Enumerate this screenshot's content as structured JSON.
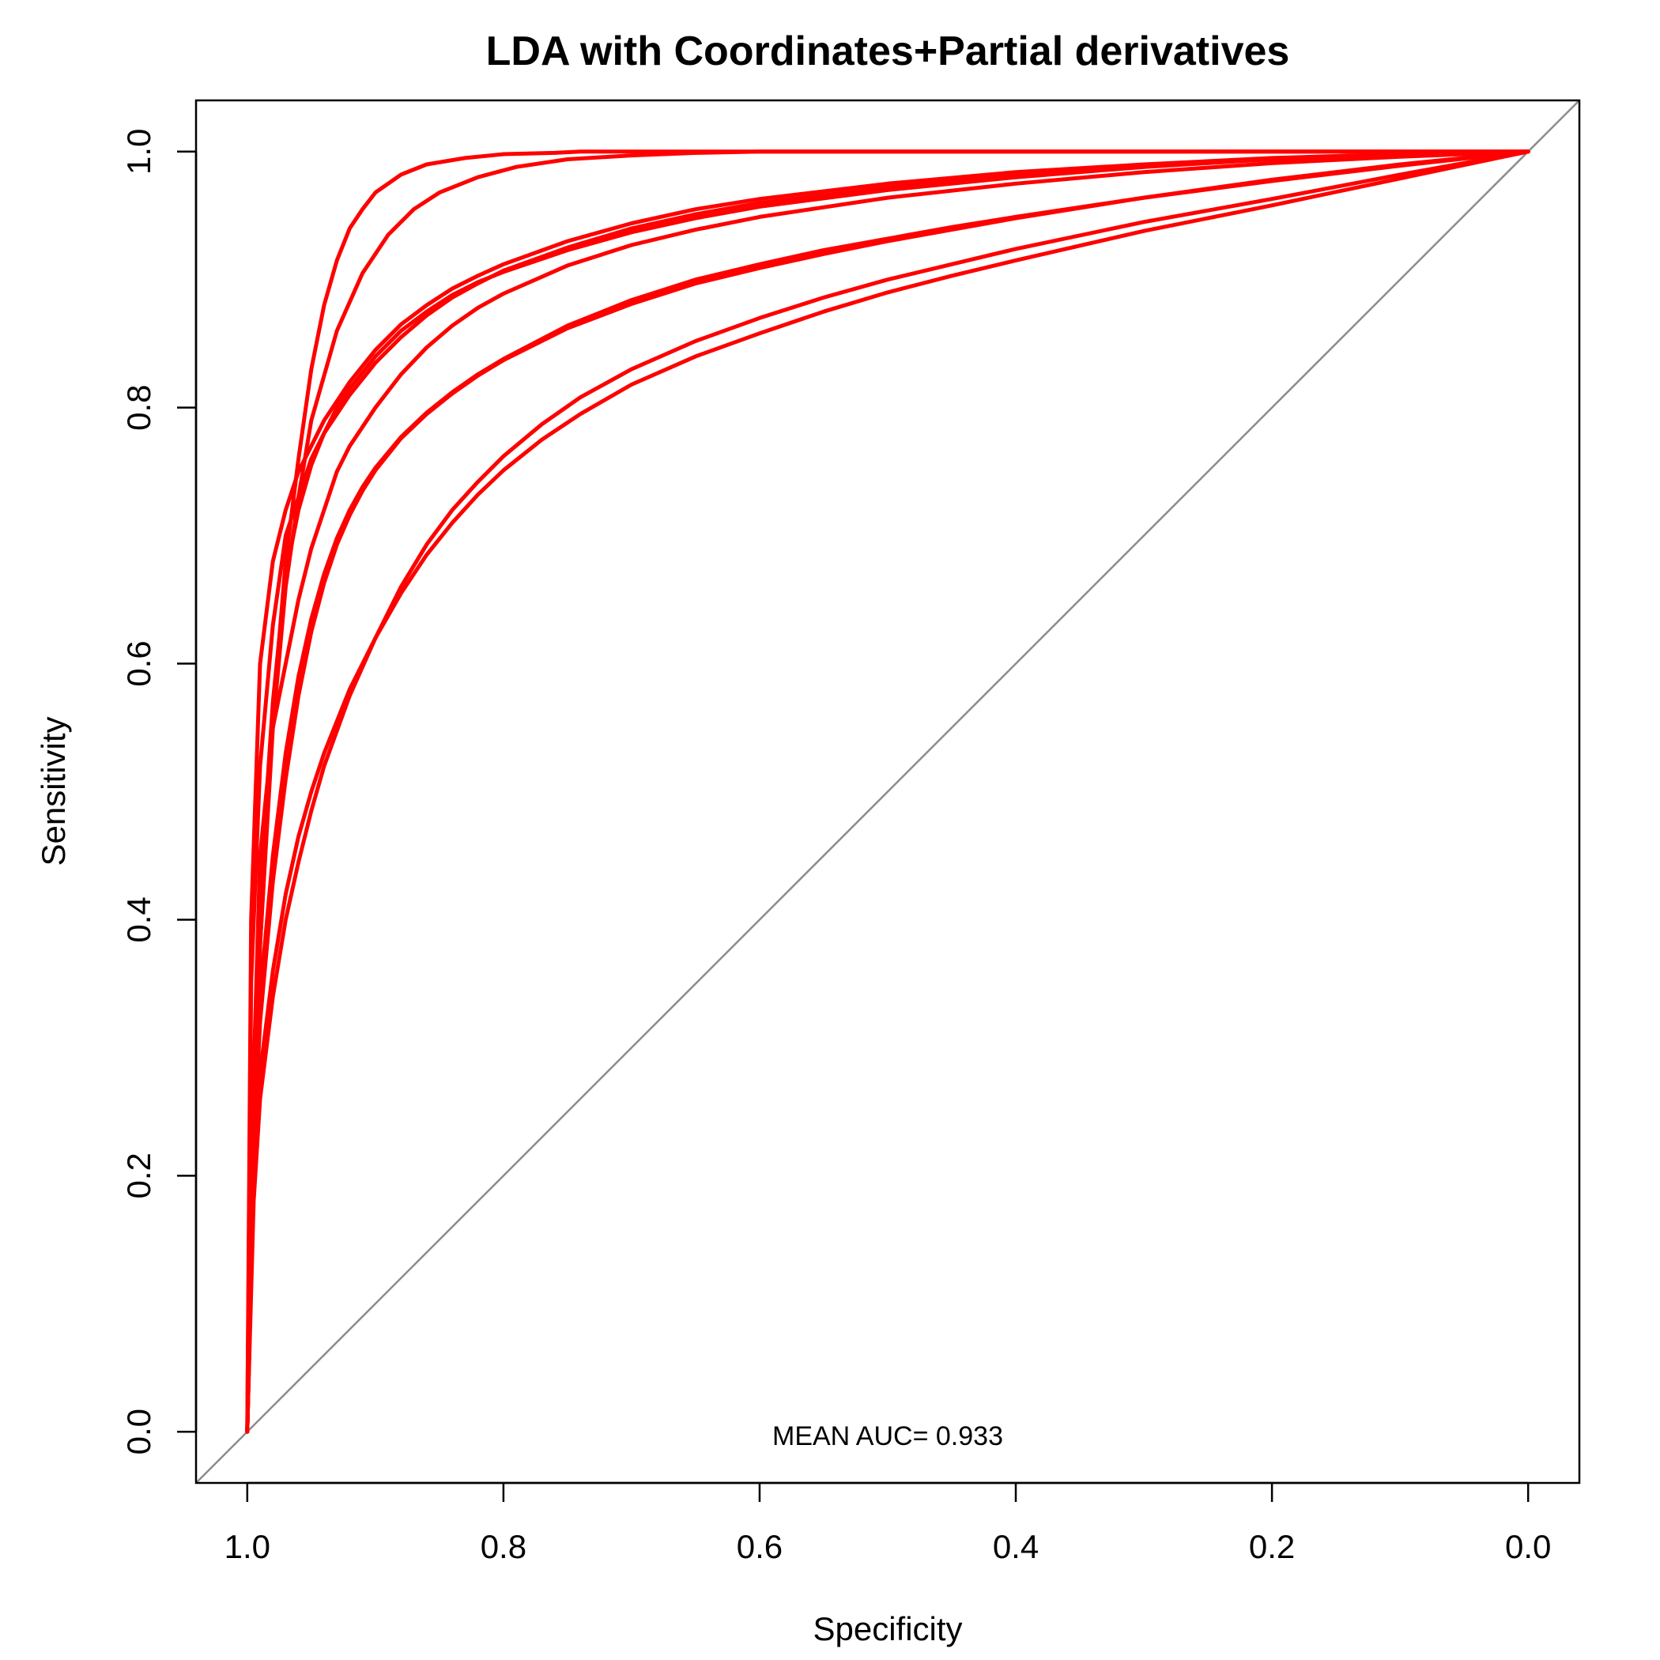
{
  "chart_data": {
    "type": "line",
    "title": "LDA with Coordinates+Partial derivatives",
    "xlabel": "Specificity",
    "ylabel": "Sensitivity",
    "xlim": [
      1.04,
      -0.04
    ],
    "ylim": [
      -0.04,
      1.04
    ],
    "x_reversed": true,
    "grid": false,
    "legend": "none",
    "x_ticks": [
      "1.0",
      "0.8",
      "0.6",
      "0.4",
      "0.2",
      "0.0"
    ],
    "x_tick_values": [
      1.0,
      0.8,
      0.6,
      0.4,
      0.2,
      0.0
    ],
    "y_ticks": [
      "0.0",
      "0.2",
      "0.4",
      "0.6",
      "0.8",
      "1.0"
    ],
    "y_tick_values": [
      0.0,
      0.2,
      0.4,
      0.6,
      0.8,
      1.0
    ],
    "annotation": "MEAN AUC= 0.933",
    "reference_line": {
      "from": [
        1.0,
        0.0
      ],
      "to": [
        0.0,
        1.0
      ],
      "color": "#8c8c8c"
    },
    "curve_color": "#ff0000",
    "series": [
      {
        "x": [
          1.0,
          0.995,
          0.99,
          0.98,
          0.97,
          0.96,
          0.95,
          0.94,
          0.93,
          0.92,
          0.91,
          0.9,
          0.88,
          0.86,
          0.83,
          0.8,
          0.76,
          0.74,
          0.7,
          0.6,
          0.5,
          0.4,
          0.3,
          0.2,
          0.1,
          0.0
        ],
        "y": [
          0.0,
          0.2,
          0.38,
          0.56,
          0.68,
          0.76,
          0.83,
          0.88,
          0.915,
          0.94,
          0.955,
          0.968,
          0.982,
          0.99,
          0.995,
          0.998,
          0.999,
          1.0,
          1.0,
          1.0,
          1.0,
          1.0,
          1.0,
          1.0,
          1.0,
          1.0
        ]
      },
      {
        "x": [
          1.0,
          0.995,
          0.99,
          0.98,
          0.97,
          0.96,
          0.95,
          0.93,
          0.91,
          0.89,
          0.87,
          0.85,
          0.82,
          0.79,
          0.75,
          0.7,
          0.65,
          0.6,
          0.5,
          0.4,
          0.3,
          0.2,
          0.1,
          0.0
        ],
        "y": [
          0.0,
          0.22,
          0.38,
          0.55,
          0.66,
          0.73,
          0.79,
          0.86,
          0.905,
          0.935,
          0.955,
          0.968,
          0.98,
          0.988,
          0.994,
          0.997,
          0.999,
          1.0,
          1.0,
          1.0,
          1.0,
          1.0,
          1.0,
          1.0
        ]
      },
      {
        "x": [
          1.0,
          0.997,
          0.99,
          0.98,
          0.97,
          0.96,
          0.95,
          0.94,
          0.93,
          0.92,
          0.9,
          0.88,
          0.86,
          0.84,
          0.82,
          0.8,
          0.75,
          0.7,
          0.65,
          0.6,
          0.5,
          0.4,
          0.3,
          0.2,
          0.1,
          0.0
        ],
        "y": [
          0.0,
          0.4,
          0.6,
          0.68,
          0.72,
          0.75,
          0.77,
          0.79,
          0.805,
          0.82,
          0.845,
          0.865,
          0.88,
          0.893,
          0.903,
          0.912,
          0.93,
          0.944,
          0.955,
          0.963,
          0.975,
          0.984,
          0.99,
          0.995,
          0.998,
          1.0
        ]
      },
      {
        "x": [
          1.0,
          0.997,
          0.99,
          0.98,
          0.97,
          0.96,
          0.95,
          0.94,
          0.92,
          0.9,
          0.88,
          0.86,
          0.84,
          0.82,
          0.8,
          0.75,
          0.7,
          0.65,
          0.6,
          0.5,
          0.4,
          0.3,
          0.2,
          0.1,
          0.0
        ],
        "y": [
          0.0,
          0.35,
          0.52,
          0.63,
          0.7,
          0.73,
          0.76,
          0.78,
          0.81,
          0.835,
          0.855,
          0.872,
          0.886,
          0.897,
          0.907,
          0.925,
          0.94,
          0.951,
          0.96,
          0.972,
          0.982,
          0.989,
          0.994,
          0.998,
          1.0
        ]
      },
      {
        "x": [
          1.0,
          0.995,
          0.99,
          0.98,
          0.97,
          0.96,
          0.95,
          0.94,
          0.93,
          0.92,
          0.9,
          0.88,
          0.86,
          0.84,
          0.82,
          0.8,
          0.75,
          0.7,
          0.65,
          0.6,
          0.5,
          0.4,
          0.3,
          0.2,
          0.1,
          0.0
        ],
        "y": [
          0.0,
          0.25,
          0.42,
          0.57,
          0.67,
          0.72,
          0.755,
          0.78,
          0.8,
          0.815,
          0.84,
          0.86,
          0.875,
          0.888,
          0.898,
          0.906,
          0.923,
          0.937,
          0.948,
          0.957,
          0.97,
          0.98,
          0.988,
          0.994,
          0.998,
          1.0
        ]
      },
      {
        "x": [
          1.0,
          0.995,
          0.99,
          0.98,
          0.97,
          0.96,
          0.95,
          0.94,
          0.93,
          0.92,
          0.9,
          0.88,
          0.86,
          0.84,
          0.82,
          0.8,
          0.75,
          0.7,
          0.65,
          0.6,
          0.5,
          0.4,
          0.3,
          0.2,
          0.1,
          0.0
        ],
        "y": [
          0.0,
          0.28,
          0.45,
          0.55,
          0.6,
          0.65,
          0.69,
          0.72,
          0.75,
          0.77,
          0.8,
          0.826,
          0.847,
          0.864,
          0.878,
          0.889,
          0.911,
          0.927,
          0.939,
          0.949,
          0.964,
          0.975,
          0.984,
          0.991,
          0.996,
          1.0
        ]
      },
      {
        "x": [
          1.0,
          0.995,
          0.99,
          0.98,
          0.97,
          0.96,
          0.95,
          0.94,
          0.93,
          0.92,
          0.91,
          0.9,
          0.88,
          0.86,
          0.84,
          0.82,
          0.8,
          0.75,
          0.7,
          0.65,
          0.6,
          0.55,
          0.5,
          0.45,
          0.4,
          0.3,
          0.2,
          0.1,
          0.0
        ],
        "y": [
          0.0,
          0.24,
          0.34,
          0.45,
          0.53,
          0.59,
          0.635,
          0.67,
          0.698,
          0.72,
          0.738,
          0.753,
          0.777,
          0.796,
          0.812,
          0.826,
          0.838,
          0.864,
          0.884,
          0.9,
          0.912,
          0.923,
          0.932,
          0.941,
          0.949,
          0.964,
          0.977,
          0.989,
          1.0
        ]
      },
      {
        "x": [
          1.0,
          0.995,
          0.99,
          0.98,
          0.97,
          0.96,
          0.95,
          0.94,
          0.93,
          0.92,
          0.91,
          0.9,
          0.88,
          0.86,
          0.84,
          0.82,
          0.8,
          0.75,
          0.7,
          0.65,
          0.6,
          0.55,
          0.5,
          0.45,
          0.4,
          0.3,
          0.2,
          0.1,
          0.0
        ],
        "y": [
          0.0,
          0.22,
          0.32,
          0.43,
          0.51,
          0.575,
          0.625,
          0.663,
          0.693,
          0.716,
          0.735,
          0.751,
          0.776,
          0.795,
          0.811,
          0.825,
          0.837,
          0.862,
          0.881,
          0.897,
          0.909,
          0.92,
          0.93,
          0.939,
          0.948,
          0.964,
          0.978,
          0.99,
          1.0
        ]
      },
      {
        "x": [
          1.0,
          0.995,
          0.99,
          0.98,
          0.97,
          0.96,
          0.95,
          0.94,
          0.92,
          0.9,
          0.88,
          0.86,
          0.84,
          0.82,
          0.8,
          0.77,
          0.74,
          0.7,
          0.65,
          0.6,
          0.55,
          0.5,
          0.45,
          0.4,
          0.3,
          0.2,
          0.1,
          0.0
        ],
        "y": [
          0.0,
          0.18,
          0.26,
          0.34,
          0.4,
          0.445,
          0.485,
          0.52,
          0.575,
          0.62,
          0.66,
          0.693,
          0.72,
          0.742,
          0.762,
          0.787,
          0.808,
          0.83,
          0.852,
          0.87,
          0.886,
          0.9,
          0.912,
          0.924,
          0.945,
          0.963,
          0.982,
          1.0
        ]
      },
      {
        "x": [
          1.0,
          0.995,
          0.99,
          0.98,
          0.97,
          0.96,
          0.95,
          0.94,
          0.92,
          0.9,
          0.88,
          0.86,
          0.84,
          0.82,
          0.8,
          0.77,
          0.74,
          0.7,
          0.65,
          0.6,
          0.55,
          0.5,
          0.45,
          0.4,
          0.3,
          0.2,
          0.1,
          0.0
        ],
        "y": [
          0.0,
          0.2,
          0.28,
          0.36,
          0.42,
          0.465,
          0.5,
          0.53,
          0.58,
          0.62,
          0.655,
          0.685,
          0.71,
          0.732,
          0.751,
          0.775,
          0.795,
          0.818,
          0.84,
          0.858,
          0.875,
          0.89,
          0.903,
          0.915,
          0.938,
          0.958,
          0.979,
          1.0
        ]
      }
    ]
  }
}
